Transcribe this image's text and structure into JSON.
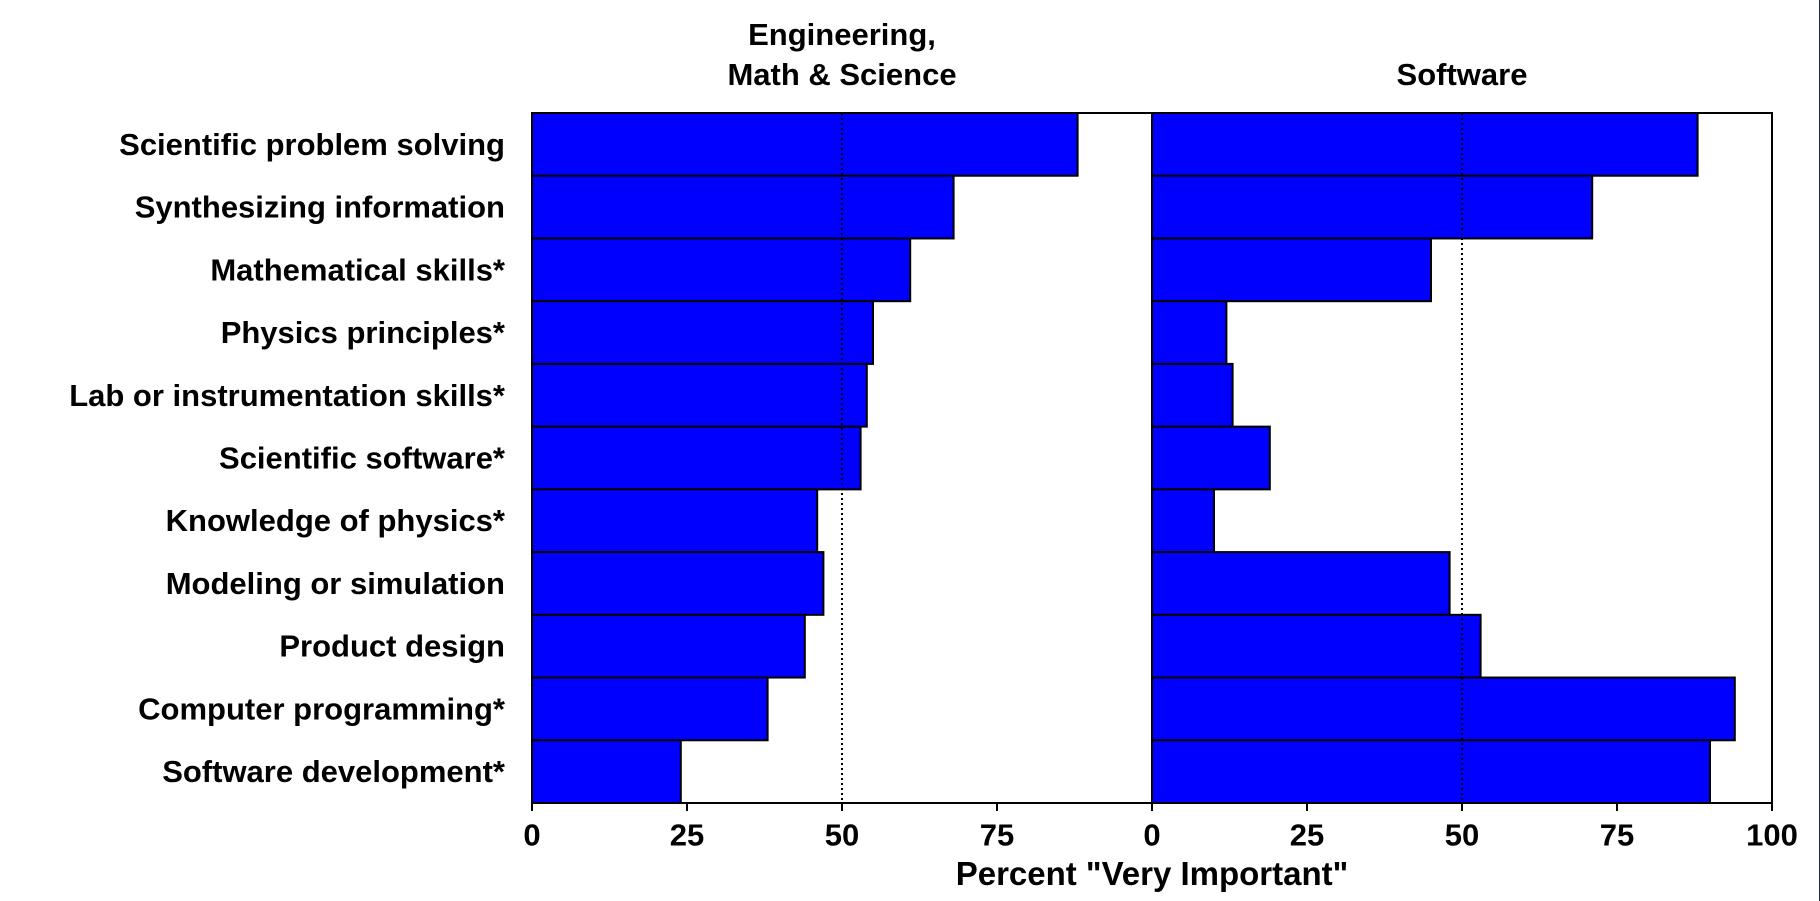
{
  "chart_data": {
    "type": "bar",
    "orientation": "horizontal",
    "categories": [
      "Scientific problem solving",
      "Synthesizing information",
      "Mathematical skills*",
      "Physics principles*",
      "Lab or instrumentation skills*",
      "Scientific software*",
      "Knowledge of physics*",
      "Modeling or simulation",
      "Product design",
      "Computer programming*",
      "Software development*"
    ],
    "panels": [
      {
        "title_lines": [
          "Engineering,",
          "Math & Science"
        ],
        "values": [
          88,
          68,
          61,
          55,
          54,
          53,
          46,
          47,
          44,
          38,
          24
        ],
        "xlim": [
          0,
          100
        ],
        "tick_labels": [
          "0",
          "25",
          "50",
          "75"
        ]
      },
      {
        "title_lines": [
          "Software"
        ],
        "values": [
          88,
          71,
          45,
          12,
          13,
          19,
          10,
          48,
          53,
          94,
          90
        ],
        "xlim": [
          0,
          100
        ],
        "tick_labels": [
          "0",
          "25",
          "50",
          "75",
          "100"
        ]
      }
    ],
    "xlabel": "Percent \"Very Important\"",
    "reference_line": 50,
    "bar_color": "#0000ff",
    "grid": false
  }
}
